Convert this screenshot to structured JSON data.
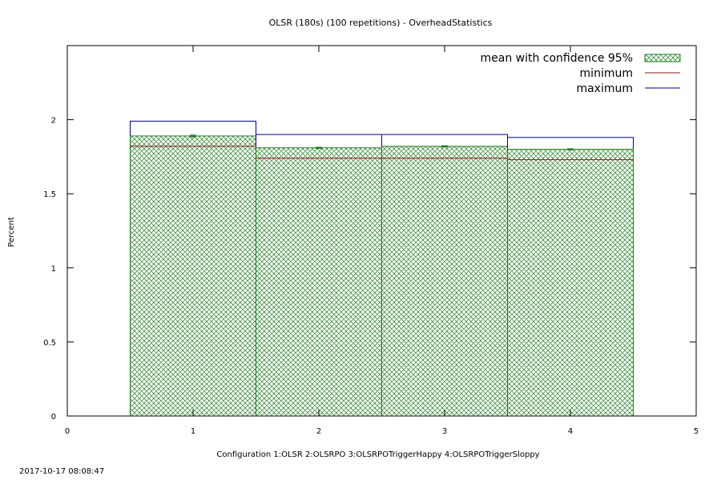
{
  "chart_data": {
    "type": "bar",
    "title": "OLSR (180s) (100 repetitions) - OverheadStatistics",
    "xlabel": "Configuration 1:OLSR  2:OLSRPO  3:OLSRPOTriggerHappy  4:OLSRPOTriggerSloppy",
    "ylabel": "Percent",
    "xlim": [
      0,
      5
    ],
    "ylim": [
      0,
      2.5
    ],
    "xticks": [
      "0",
      "1",
      "2",
      "3",
      "4",
      "5"
    ],
    "yticks": [
      "0",
      "0.5",
      "1",
      "1.5",
      "2"
    ],
    "categories": [
      1,
      2,
      3,
      4
    ],
    "series": [
      {
        "name": "mean with confidence 95%",
        "values": [
          1.89,
          1.81,
          1.82,
          1.8
        ],
        "error": [
          0.006,
          0.004,
          0.004,
          0.004
        ],
        "color": "#1a7a1a"
      },
      {
        "name": "minimum",
        "values": [
          1.82,
          1.74,
          1.74,
          1.73
        ],
        "color": "#8b1a1a"
      },
      {
        "name": "maximum",
        "values": [
          1.99,
          1.9,
          1.9,
          1.88
        ],
        "color": "#00008b"
      }
    ],
    "legend_position": "top-right",
    "grid": false
  },
  "timestamp": "2017-10-17 08:08:47"
}
